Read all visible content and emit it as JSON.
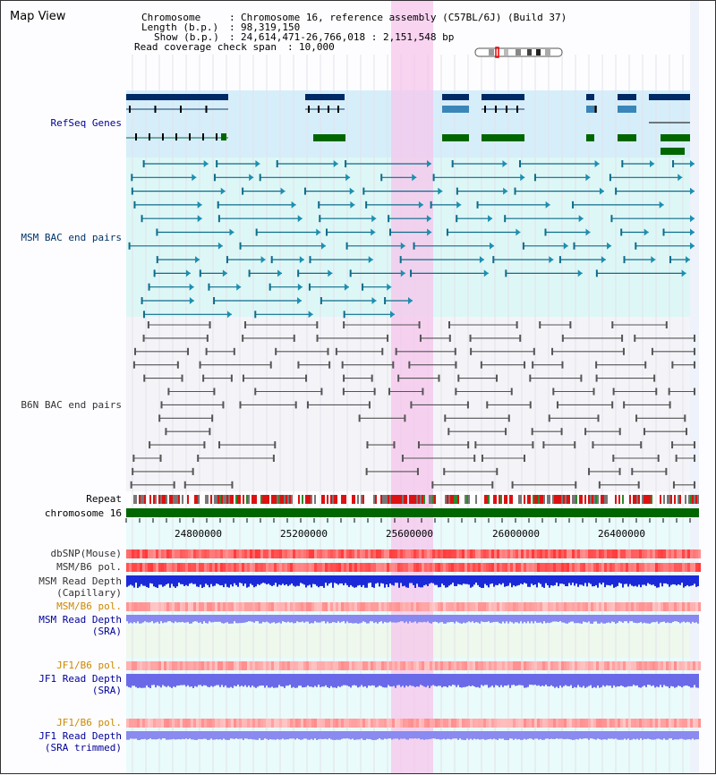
{
  "title": "Map View",
  "info": {
    "chromosome_label": "Chromosome",
    "chromosome_value": "Chromosome 16, reference assembly (C57BL/6J) (Build 37)",
    "length_label": "Length (b.p.)",
    "length_value": "98,319,150",
    "show_label": "Show (b.p.)",
    "show_value": "24,614,471-26,766,018 : 2,151,548 bp",
    "span_label": "Read coverage check span",
    "span_value": "10,000"
  },
  "tracks": {
    "refseq": "RefSeq Genes",
    "msm_bac": "MSM BAC end pairs",
    "b6n_bac": "B6N BAC end pairs",
    "repeat": "Repeat",
    "chromosome": "chromosome 16",
    "dbsnp": "dbSNP(Mouse)",
    "msm_b6_pol": "MSM/B6 pol.",
    "msm_depth_cap_1": "MSM Read Depth",
    "msm_depth_cap_2": "(Capillary)",
    "msm_b6_pol2": "MSM/B6 pol.",
    "msm_depth_sra_1": "MSM Read Depth",
    "msm_depth_sra_2": "(SRA)",
    "jf1_b6_pol": "JF1/B6 pol.",
    "jf1_depth_sra_1": "JF1 Read Depth",
    "jf1_depth_sra_2": "(SRA)",
    "jf1_b6_pol2": "JF1/B6 pol.",
    "jf1_depth_trim_1": "JF1 Read Depth",
    "jf1_depth_trim_2": "(SRA trimmed)"
  },
  "axis_ticks": [
    "24800000",
    "25200000",
    "25600000",
    "26000000",
    "26400000"
  ],
  "colors": {
    "refseq_label": "#000099",
    "msm_label": "#003366",
    "b6n_label": "#333333",
    "orange_label": "#cc8800",
    "blue_label": "#000099",
    "highlight": "#f5c6ec",
    "refseq_band": "#d6eefa",
    "msm_band": "#ddf7f7",
    "chrom_bar": "#006600"
  }
}
